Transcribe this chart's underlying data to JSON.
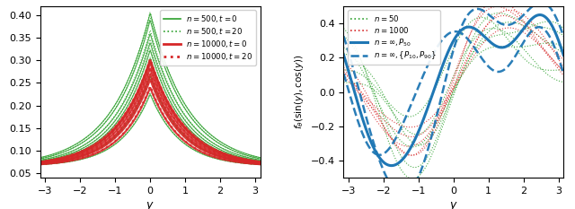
{
  "xlim": [
    -3.14159,
    3.14159
  ],
  "left_ylim": [
    0.04,
    0.42
  ],
  "right_ylim": [
    -0.5,
    0.5
  ],
  "xlabel": "y",
  "green_color": "#2ca02c",
  "red_color": "#d62728",
  "blue_color": "#1f77b4",
  "left_peaks_500_t0": [
    0.225,
    0.265,
    0.305,
    0.323,
    0.34,
    0.36,
    0.39,
    0.405
  ],
  "left_widths_500_t0": [
    1.18,
    1.1,
    1.05,
    1.02,
    1.0,
    0.97,
    0.94,
    0.91
  ],
  "left_peaks_500_t20": [
    0.23,
    0.268,
    0.308,
    0.328,
    0.348,
    0.368,
    0.395,
    0.408
  ],
  "left_widths_500_t20": [
    1.2,
    1.12,
    1.07,
    1.04,
    1.01,
    0.98,
    0.95,
    0.92
  ],
  "left_peaks_10k_t0": [
    0.24,
    0.258,
    0.27,
    0.283,
    0.295,
    0.302
  ],
  "left_widths_10k_t0": [
    1.16,
    1.11,
    1.08,
    1.05,
    1.02,
    1.0
  ],
  "left_peaks_10k_t20": [
    0.243,
    0.262,
    0.273,
    0.285,
    0.296,
    0.303
  ],
  "left_widths_10k_t20": [
    1.16,
    1.11,
    1.08,
    1.05,
    1.02,
    1.0
  ],
  "base_level": 0.065,
  "right_yticks": [
    -0.4,
    -0.2,
    0.0,
    0.2,
    0.4
  ],
  "left_yticks": [
    0.05,
    0.1,
    0.15,
    0.2,
    0.25,
    0.3,
    0.35,
    0.4
  ],
  "xticks": [
    -3,
    -2,
    -1,
    0,
    1,
    2,
    3
  ]
}
